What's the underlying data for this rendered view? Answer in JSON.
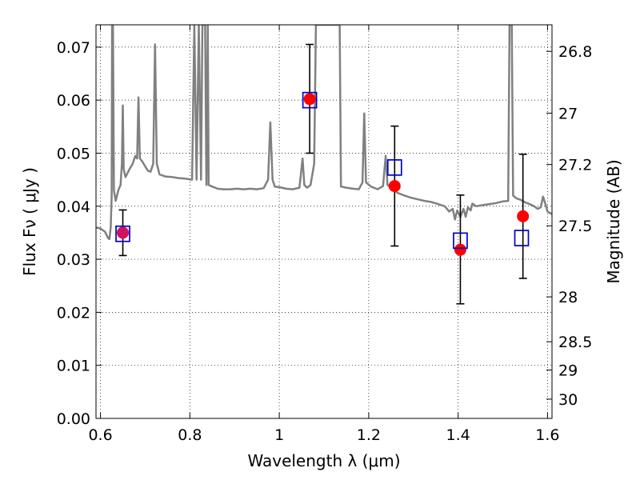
{
  "chart_data": {
    "type": "scatter",
    "xlabel": "Wavelength  λ (μm)",
    "ylabel": "Flux  Fν  ( μJy )",
    "ylabel_right": "Magnitude (AB)",
    "xlim": [
      0.59,
      1.61
    ],
    "ylim": [
      0.0,
      0.0742
    ],
    "grid": true,
    "x_ticks": [
      {
        "value": 0.6,
        "label": "0.6"
      },
      {
        "value": 0.8,
        "label": "0.8"
      },
      {
        "value": 1.0,
        "label": "1"
      },
      {
        "value": 1.2,
        "label": "1.2"
      },
      {
        "value": 1.4,
        "label": "1.4"
      },
      {
        "value": 1.6,
        "label": "1.6"
      }
    ],
    "y_ticks": [
      {
        "value": 0.0,
        "label": "0.00"
      },
      {
        "value": 0.01,
        "label": "0.01"
      },
      {
        "value": 0.02,
        "label": "0.02"
      },
      {
        "value": 0.03,
        "label": "0.03"
      },
      {
        "value": 0.04,
        "label": "0.04"
      },
      {
        "value": 0.05,
        "label": "0.05"
      },
      {
        "value": 0.06,
        "label": "0.06"
      },
      {
        "value": 0.07,
        "label": "0.07"
      }
    ],
    "right_ticks": [
      {
        "value": 26.8,
        "label": "26.8"
      },
      {
        "value": 27.0,
        "label": "27"
      },
      {
        "value": 27.2,
        "label": "27.2"
      },
      {
        "value": 27.5,
        "label": "27.5"
      },
      {
        "value": 28.0,
        "label": "28"
      },
      {
        "value": 28.5,
        "label": "28.5"
      },
      {
        "value": 29.0,
        "label": "29"
      },
      {
        "value": 30.0,
        "label": "30"
      }
    ],
    "observed": {
      "color": "#ff0000",
      "points": [
        {
          "x": 0.65,
          "y": 0.035,
          "yerr_low": 0.0307,
          "yerr_high": 0.0393
        },
        {
          "x": 1.068,
          "y": 0.0602,
          "yerr_low": 0.05,
          "yerr_high": 0.0705
        },
        {
          "x": 1.258,
          "y": 0.0438,
          "yerr_low": 0.0325,
          "yerr_high": 0.0551
        },
        {
          "x": 1.405,
          "y": 0.0318,
          "yerr_low": 0.0216,
          "yerr_high": 0.0421
        },
        {
          "x": 1.545,
          "y": 0.0381,
          "yerr_low": 0.0264,
          "yerr_high": 0.0498
        }
      ]
    },
    "model_synthetic": {
      "color": "#0000cc",
      "points": [
        {
          "x": 0.65,
          "y": 0.0348
        },
        {
          "x": 1.068,
          "y": 0.06
        },
        {
          "x": 1.258,
          "y": 0.0473
        },
        {
          "x": 1.405,
          "y": 0.0335
        },
        {
          "x": 1.542,
          "y": 0.034
        }
      ]
    },
    "spectrum": {
      "color": "#808080",
      "points": [
        [
          0.59,
          0.036
        ],
        [
          0.6,
          0.0358
        ],
        [
          0.61,
          0.0352
        ],
        [
          0.617,
          0.034
        ],
        [
          0.62,
          0.0338
        ],
        [
          0.623,
          0.036
        ],
        [
          0.625,
          0.042
        ],
        [
          0.626,
          0.0742
        ],
        [
          0.628,
          0.0742
        ],
        [
          0.63,
          0.043
        ],
        [
          0.634,
          0.041
        ],
        [
          0.64,
          0.043
        ],
        [
          0.645,
          0.044
        ],
        [
          0.648,
          0.048
        ],
        [
          0.65,
          0.059
        ],
        [
          0.652,
          0.047
        ],
        [
          0.656,
          0.0455
        ],
        [
          0.665,
          0.047
        ],
        [
          0.672,
          0.048
        ],
        [
          0.678,
          0.0495
        ],
        [
          0.682,
          0.049
        ],
        [
          0.685,
          0.0605
        ],
        [
          0.688,
          0.049
        ],
        [
          0.693,
          0.0485
        ],
        [
          0.7,
          0.0475
        ],
        [
          0.706,
          0.0467
        ],
        [
          0.712,
          0.0465
        ],
        [
          0.718,
          0.048
        ],
        [
          0.722,
          0.0705
        ],
        [
          0.726,
          0.048
        ],
        [
          0.732,
          0.046
        ],
        [
          0.745,
          0.0456
        ],
        [
          0.76,
          0.0455
        ],
        [
          0.775,
          0.0453
        ],
        [
          0.79,
          0.0452
        ],
        [
          0.805,
          0.045
        ],
        [
          0.81,
          0.0742
        ],
        [
          0.815,
          0.045
        ],
        [
          0.82,
          0.0742
        ],
        [
          0.825,
          0.045
        ],
        [
          0.828,
          0.0742
        ],
        [
          0.834,
          0.0742
        ],
        [
          0.837,
          0.044
        ],
        [
          0.84,
          0.0742
        ],
        [
          0.842,
          0.044
        ],
        [
          0.85,
          0.0437
        ],
        [
          0.862,
          0.0433
        ],
        [
          0.875,
          0.0432
        ],
        [
          0.89,
          0.0432
        ],
        [
          0.905,
          0.0433
        ],
        [
          0.92,
          0.0432
        ],
        [
          0.935,
          0.0433
        ],
        [
          0.95,
          0.0432
        ],
        [
          0.965,
          0.0434
        ],
        [
          0.975,
          0.045
        ],
        [
          0.98,
          0.0558
        ],
        [
          0.985,
          0.045
        ],
        [
          0.99,
          0.0437
        ],
        [
          1.0,
          0.0436
        ],
        [
          1.015,
          0.0433
        ],
        [
          1.03,
          0.0432
        ],
        [
          1.045,
          0.0435
        ],
        [
          1.052,
          0.049
        ],
        [
          1.056,
          0.044
        ],
        [
          1.062,
          0.0435
        ],
        [
          1.07,
          0.044
        ],
        [
          1.078,
          0.048
        ],
        [
          1.082,
          0.0742
        ],
        [
          1.085,
          0.0742
        ],
        [
          1.088,
          0.0742
        ],
        [
          1.135,
          0.0742
        ],
        [
          1.138,
          0.0437
        ],
        [
          1.15,
          0.0435
        ],
        [
          1.165,
          0.0433
        ],
        [
          1.178,
          0.0432
        ],
        [
          1.186,
          0.0445
        ],
        [
          1.19,
          0.0575
        ],
        [
          1.194,
          0.0445
        ],
        [
          1.205,
          0.0437
        ],
        [
          1.22,
          0.0432
        ],
        [
          1.232,
          0.0438
        ],
        [
          1.238,
          0.0495
        ],
        [
          1.242,
          0.044
        ],
        [
          1.25,
          0.0435
        ],
        [
          1.265,
          0.0425
        ],
        [
          1.28,
          0.042
        ],
        [
          1.295,
          0.0416
        ],
        [
          1.31,
          0.0413
        ],
        [
          1.325,
          0.041
        ],
        [
          1.34,
          0.0408
        ],
        [
          1.355,
          0.0404
        ],
        [
          1.37,
          0.04
        ],
        [
          1.38,
          0.039
        ],
        [
          1.388,
          0.0395
        ],
        [
          1.393,
          0.0375
        ],
        [
          1.398,
          0.0392
        ],
        [
          1.405,
          0.038
        ],
        [
          1.412,
          0.0395
        ],
        [
          1.417,
          0.038
        ],
        [
          1.422,
          0.0398
        ],
        [
          1.428,
          0.0392
        ],
        [
          1.432,
          0.0405
        ],
        [
          1.44,
          0.04
        ],
        [
          1.455,
          0.0402
        ],
        [
          1.47,
          0.0404
        ],
        [
          1.485,
          0.0406
        ],
        [
          1.5,
          0.0409
        ],
        [
          1.512,
          0.041
        ],
        [
          1.515,
          0.0742
        ],
        [
          1.52,
          0.0742
        ],
        [
          1.523,
          0.042
        ],
        [
          1.53,
          0.0415
        ],
        [
          1.54,
          0.0412
        ],
        [
          1.55,
          0.0407
        ],
        [
          1.56,
          0.0404
        ],
        [
          1.57,
          0.04
        ],
        [
          1.578,
          0.0395
        ],
        [
          1.585,
          0.0398
        ],
        [
          1.59,
          0.0418
        ],
        [
          1.595,
          0.0405
        ],
        [
          1.6,
          0.039
        ],
        [
          1.61,
          0.0385
        ]
      ]
    }
  }
}
